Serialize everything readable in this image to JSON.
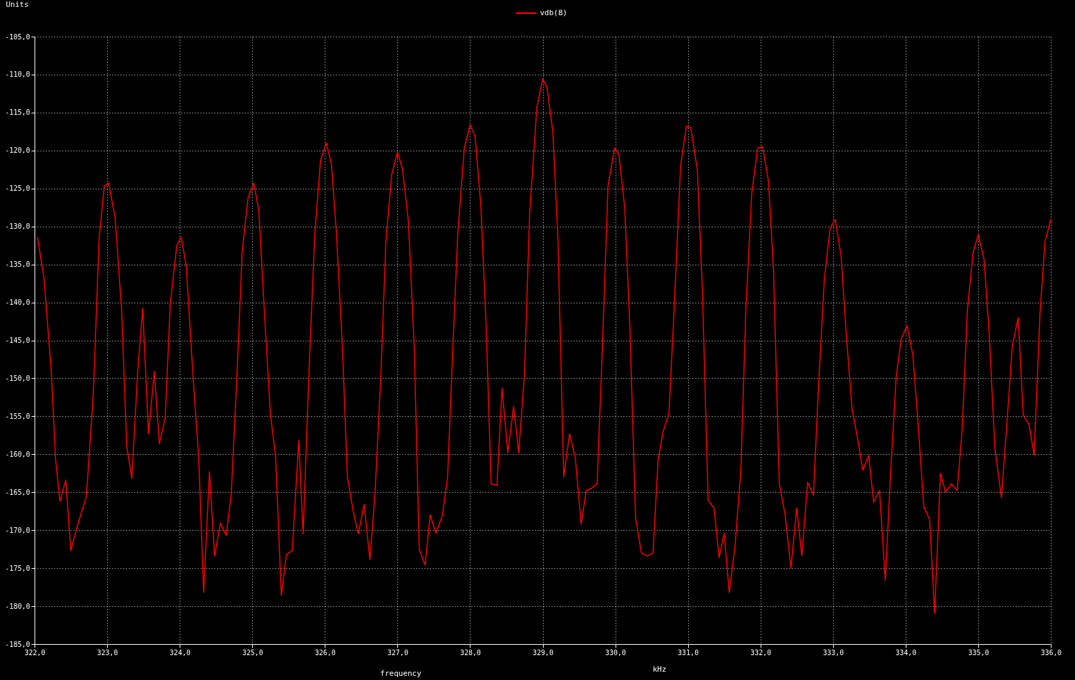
{
  "chart_data": {
    "type": "line",
    "ylabel": "Units",
    "xlabel": "frequency",
    "annotations": [
      "kHz"
    ],
    "xlim": [
      322,
      336
    ],
    "ylim": [
      -185,
      -105
    ],
    "xticks": [
      {
        "value": 322,
        "label": "322,0"
      },
      {
        "value": 323,
        "label": "323,0"
      },
      {
        "value": 324,
        "label": "324,0"
      },
      {
        "value": 325,
        "label": "325,0"
      },
      {
        "value": 326,
        "label": "326,0"
      },
      {
        "value": 327,
        "label": "327,0"
      },
      {
        "value": 328,
        "label": "328,0"
      },
      {
        "value": 329,
        "label": "329,0"
      },
      {
        "value": 330,
        "label": "330,0"
      },
      {
        "value": 331,
        "label": "331,0"
      },
      {
        "value": 332,
        "label": "332,0"
      },
      {
        "value": 333,
        "label": "333,0"
      },
      {
        "value": 334,
        "label": "334,0"
      },
      {
        "value": 335,
        "label": "335,0"
      },
      {
        "value": 336,
        "label": "336,0"
      }
    ],
    "yticks": [
      {
        "value": -185,
        "label": "-185,0"
      },
      {
        "value": -180,
        "label": "-180,0"
      },
      {
        "value": -175,
        "label": "-175,0"
      },
      {
        "value": -170,
        "label": "-170,0"
      },
      {
        "value": -165,
        "label": "-165,0"
      },
      {
        "value": -160,
        "label": "-160,0"
      },
      {
        "value": -155,
        "label": "-155,0"
      },
      {
        "value": -150,
        "label": "-150,0"
      },
      {
        "value": -145,
        "label": "-145,0"
      },
      {
        "value": -140,
        "label": "-140,0"
      },
      {
        "value": -135,
        "label": "-135,0"
      },
      {
        "value": -130,
        "label": "-130,0"
      },
      {
        "value": -125,
        "label": "-125,0"
      },
      {
        "value": -120,
        "label": "-120,0"
      },
      {
        "value": -115,
        "label": "-115,0"
      },
      {
        "value": -110,
        "label": "-110,0"
      },
      {
        "value": -105,
        "label": "-105,0"
      }
    ],
    "grid": true,
    "legend": "top",
    "line_style": "solid",
    "marker": "none",
    "x": [
      322.04,
      322.13,
      322.23,
      322.29,
      322.35,
      322.43,
      322.5,
      322.6,
      322.71,
      322.73,
      322.81,
      322.89,
      322.96,
      323.02,
      323.11,
      323.2,
      323.27,
      323.34,
      323.42,
      323.49,
      323.57,
      323.65,
      323.72,
      323.8,
      323.87,
      323.96,
      324.02,
      324.09,
      324.19,
      324.26,
      324.33,
      324.41,
      324.48,
      324.56,
      324.64,
      324.71,
      324.79,
      324.86,
      324.94,
      325.02,
      325.09,
      325.16,
      325.25,
      325.32,
      325.4,
      325.47,
      325.55,
      325.64,
      325.7,
      325.78,
      325.86,
      325.94,
      326.02,
      326.09,
      326.16,
      326.24,
      326.31,
      326.39,
      326.46,
      326.54,
      326.62,
      326.69,
      326.77,
      326.84,
      326.92,
      327.0,
      327.07,
      327.15,
      327.23,
      327.3,
      327.38,
      327.45,
      327.53,
      327.62,
      327.69,
      327.76,
      327.83,
      327.92,
      328.0,
      328.07,
      328.15,
      328.22,
      328.29,
      328.37,
      328.44,
      328.52,
      328.6,
      328.67,
      328.75,
      328.82,
      328.92,
      329.0,
      329.06,
      329.14,
      329.21,
      329.29,
      329.37,
      329.45,
      329.53,
      329.6,
      329.67,
      329.75,
      329.82,
      329.9,
      329.99,
      330.05,
      330.13,
      330.2,
      330.28,
      330.36,
      330.44,
      330.52,
      330.59,
      330.66,
      330.74,
      330.81,
      330.9,
      330.98,
      331.04,
      331.13,
      331.2,
      331.28,
      331.36,
      331.43,
      331.5,
      331.57,
      331.65,
      331.73,
      331.8,
      331.88,
      331.96,
      332.03,
      332.11,
      332.18,
      332.26,
      332.34,
      332.42,
      332.5,
      332.57,
      332.65,
      332.73,
      332.8,
      332.88,
      332.96,
      333.03,
      333.11,
      333.18,
      333.26,
      333.34,
      333.41,
      333.49,
      333.56,
      333.64,
      333.72,
      333.79,
      333.87,
      333.94,
      334.02,
      334.1,
      334.17,
      334.25,
      334.33,
      334.4,
      334.48,
      334.55,
      334.63,
      334.71,
      334.78,
      334.85,
      334.93,
      335.0,
      335.08,
      335.15,
      335.23,
      335.32,
      335.39,
      335.47,
      335.55,
      335.62,
      335.7,
      335.77,
      335.85,
      335.92,
      336.0
    ],
    "series": [
      {
        "name": "vdb(8)",
        "color": "#ff0000",
        "values": [
          -131.4,
          -136.8,
          -149,
          -160.7,
          -166.2,
          -163.4,
          -172.7,
          -169.1,
          -165.7,
          -163.4,
          -152,
          -131.6,
          -124.7,
          -124.3,
          -128.8,
          -141.1,
          -158.9,
          -163.2,
          -149.3,
          -140.8,
          -157.3,
          -149.1,
          -158.6,
          -155.2,
          -140.2,
          -132.5,
          -131.4,
          -135.2,
          -150.7,
          -160.2,
          -178.2,
          -162.3,
          -173.4,
          -169.1,
          -170.7,
          -165.2,
          -149.3,
          -133.4,
          -126.3,
          -124.3,
          -127.9,
          -140.2,
          -154.8,
          -160.2,
          -178.6,
          -173.2,
          -172.7,
          -158.2,
          -170.5,
          -149.3,
          -131.1,
          -121.3,
          -119.0,
          -121.8,
          -131.1,
          -145.7,
          -163.0,
          -167.5,
          -170.5,
          -166.6,
          -173.9,
          -165.2,
          -149.8,
          -132.0,
          -123.2,
          -120.2,
          -122.5,
          -129.3,
          -145.7,
          -172.5,
          -174.6,
          -168.0,
          -170.4,
          -168.0,
          -163.0,
          -146.6,
          -131.1,
          -119.7,
          -116.6,
          -118.2,
          -127.5,
          -142.9,
          -163.9,
          -164.1,
          -151.3,
          -159.8,
          -153.7,
          -159.8,
          -149.3,
          -128.4,
          -114.3,
          -110.6,
          -111.7,
          -117.5,
          -131.6,
          -163.0,
          -157.3,
          -160.5,
          -169.2,
          -164.8,
          -164.5,
          -163.9,
          -146.6,
          -124.7,
          -119.7,
          -120.5,
          -127.5,
          -142.9,
          -168.4,
          -173.0,
          -173.4,
          -173.0,
          -160.7,
          -157.0,
          -154.6,
          -141.1,
          -122.0,
          -116.8,
          -117.0,
          -122.5,
          -138.4,
          -166.1,
          -167.1,
          -173.6,
          -170.4,
          -178.2,
          -172.1,
          -162.1,
          -140.7,
          -125.7,
          -119.7,
          -119.5,
          -124.0,
          -135.7,
          -163.9,
          -168.0,
          -175.0,
          -167.1,
          -173.4,
          -163.7,
          -165.4,
          -151.1,
          -137.0,
          -130.2,
          -129.1,
          -133.8,
          -143.9,
          -153.9,
          -158.0,
          -162.1,
          -160.2,
          -166.3,
          -164.8,
          -176.6,
          -163.0,
          -149.8,
          -144.8,
          -143.1,
          -147.0,
          -155.7,
          -166.9,
          -168.6,
          -181.0,
          -162.5,
          -165.0,
          -163.9,
          -164.8,
          -156.6,
          -141.1,
          -133.4,
          -131.1,
          -134.3,
          -143.9,
          -159.3,
          -165.7,
          -156.6,
          -145.7,
          -142.0,
          -154.8,
          -156.1,
          -160.1,
          -141.6,
          -132.0,
          -129.1
        ]
      }
    ]
  }
}
